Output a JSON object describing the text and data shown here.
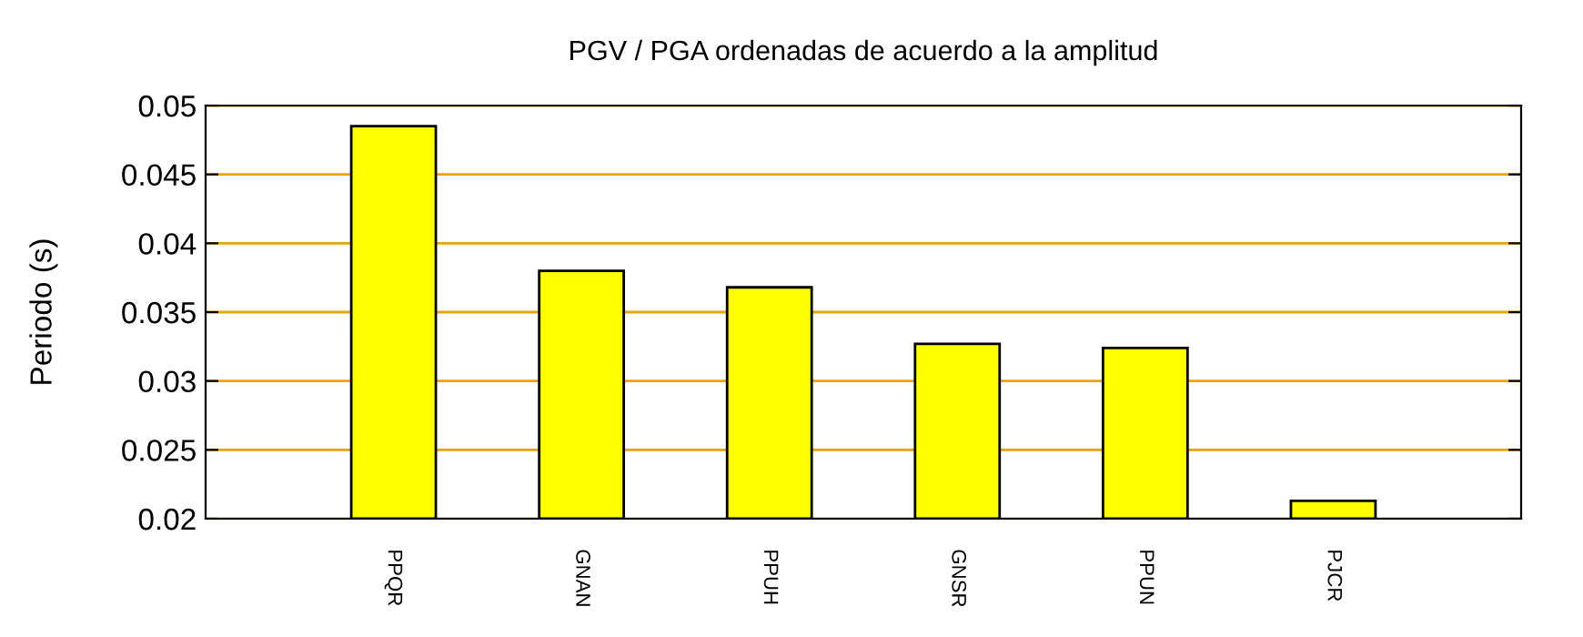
{
  "chart_data": {
    "type": "bar",
    "title": "PGV / PGA ordenadas de acuerdo a la amplitud",
    "ylabel": "Periodo (s)",
    "categories": [
      "PPQR",
      "GNAN",
      "PPUH",
      "GNSR",
      "PPUN",
      "PJCR"
    ],
    "values": [
      0.0485,
      0.038,
      0.0368,
      0.0327,
      0.0324,
      0.0213
    ],
    "color": "#ffff00",
    "ylim": [
      0.02,
      0.05
    ],
    "yticks": [
      0.02,
      0.025,
      0.03,
      0.035,
      0.04,
      0.045,
      0.05
    ],
    "grid": "y",
    "legend": false
  }
}
